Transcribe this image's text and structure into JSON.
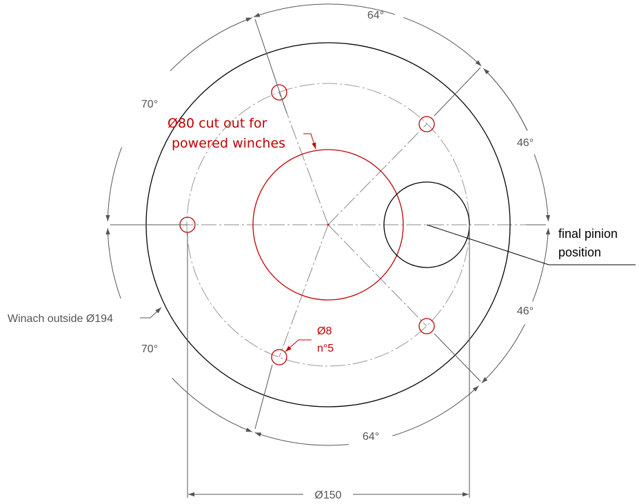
{
  "labels": {
    "dims": {
      "angle_top": "64°",
      "angle_upper_right": "46°",
      "angle_lower_right": "46°",
      "angle_bottom": "64°",
      "angle_lower_left": "70°",
      "angle_upper_left": "70°",
      "bolt_circle_diameter": "Ø150"
    },
    "cutout": {
      "line1": "Ø80 cut out for",
      "line2": "powered winches"
    },
    "holes": {
      "line1": "Ø8",
      "line2": "n°5"
    },
    "outside": "Winach outside Ø194",
    "pinion": {
      "line1": "final pinion",
      "line2": "position"
    }
  },
  "colors": {
    "outline": "#000000",
    "holes": "#c00000",
    "center_lines": "#888888",
    "dimensions": "#555555"
  }
}
